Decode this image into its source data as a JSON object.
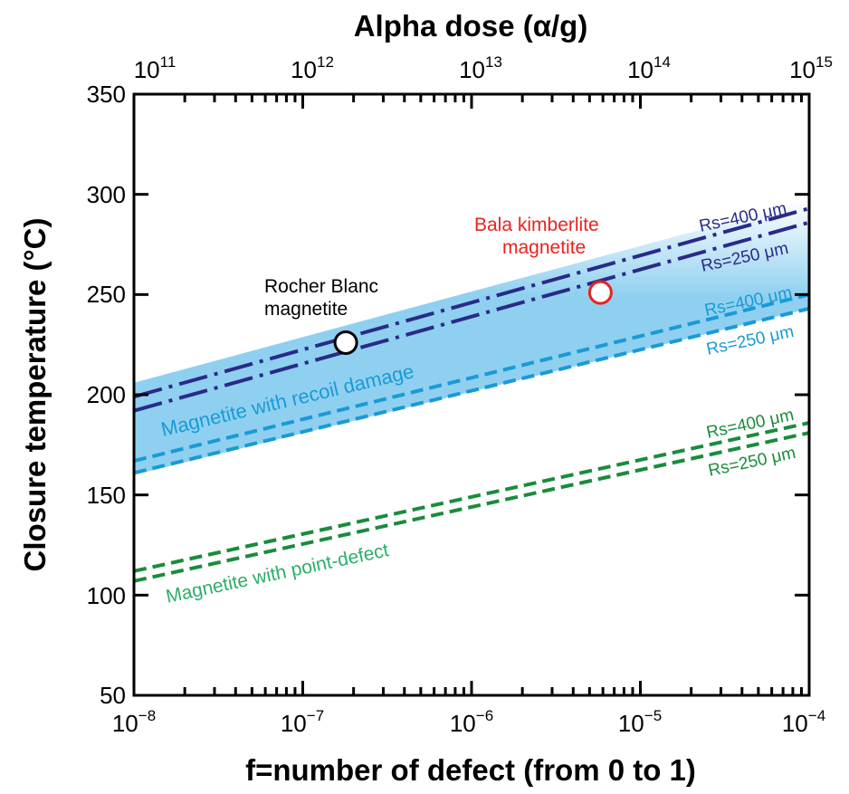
{
  "chart_data": {
    "type": "line",
    "title": "",
    "xlabel": "f=number of defect (from 0 to 1)",
    "ylabel": "Closure temperature (°C)",
    "top_xlabel": "Alpha dose (α/g)",
    "x_scale": "log",
    "xlim": [
      1e-08,
      0.0001
    ],
    "ylim": [
      50,
      350
    ],
    "top_xlim": [
      100000000000.0,
      1000000000000000.0
    ],
    "x_ticks": [
      {
        "base": "10",
        "exp": "−8",
        "value": 1e-08
      },
      {
        "base": "10",
        "exp": "−7",
        "value": 1e-07
      },
      {
        "base": "10",
        "exp": "−6",
        "value": 1e-06
      },
      {
        "base": "10",
        "exp": "−5",
        "value": 1e-05
      },
      {
        "base": "10",
        "exp": "−4",
        "value": 0.0001
      }
    ],
    "top_x_ticks": [
      {
        "base": "10",
        "exp": "11",
        "value": 1e-08
      },
      {
        "base": "10",
        "exp": "12",
        "value": 1e-07
      },
      {
        "base": "10",
        "exp": "13",
        "value": 1e-06
      },
      {
        "base": "10",
        "exp": "14",
        "value": 1e-05
      },
      {
        "base": "10",
        "exp": "15",
        "value": 0.0001
      }
    ],
    "y_ticks": [
      "50",
      "100",
      "150",
      "200",
      "250",
      "300",
      "350"
    ],
    "band": {
      "label": "Magnetite with recoil damage",
      "color": "#8fd0f0",
      "x": [
        1e-08,
        0.0001
      ],
      "upper": [
        206,
        297
      ],
      "lower": [
        160,
        243
      ]
    },
    "series": [
      {
        "name": "Rs=400 μm",
        "group": "recoil-alpha",
        "color": "#2a2a88",
        "dash": "dashdot",
        "x": [
          1e-08,
          0.0001
        ],
        "y": [
          199,
          293
        ]
      },
      {
        "name": "Rs=250 μm",
        "group": "recoil-alpha",
        "color": "#2a2a88",
        "dash": "dashdot",
        "x": [
          1e-08,
          0.0001
        ],
        "y": [
          192,
          286
        ]
      },
      {
        "name": "Rs=400 μm",
        "group": "recoil",
        "color": "#1a9ad6",
        "dash": "dash",
        "x": [
          1e-08,
          0.0001
        ],
        "y": [
          167,
          250
        ]
      },
      {
        "name": "Rs=250 μm",
        "group": "recoil",
        "color": "#1a9ad6",
        "dash": "dash",
        "x": [
          1e-08,
          0.0001
        ],
        "y": [
          161,
          243
        ]
      },
      {
        "name": "Rs=400 μm",
        "group": "point-defect",
        "color": "#1a8c3c",
        "dash": "dash",
        "x": [
          1e-08,
          0.0001
        ],
        "y": [
          112,
          186
        ]
      },
      {
        "name": "Rs=250 μm",
        "group": "point-defect",
        "color": "#1a8c3c",
        "dash": "dash",
        "x": [
          1e-08,
          0.0001
        ],
        "y": [
          107,
          181
        ]
      }
    ],
    "points": [
      {
        "name": "Rocher Blanc magnetite",
        "label_lines": [
          "Rocher Blanc",
          "magnetite"
        ],
        "x": 1.8e-07,
        "y": 226,
        "edge_color": "#000000",
        "label_color": "#000000"
      },
      {
        "name": "Bala kimberlite magnetite",
        "label_lines": [
          "Bala kimberlite",
          "magnetite"
        ],
        "x": 5.8e-06,
        "y": 251,
        "edge_color": "#e8231e",
        "label_color": "#e8231e"
      }
    ],
    "annotations": [
      {
        "text": "Magnetite with recoil damage",
        "color": "#1a9ad6"
      },
      {
        "text": "Magnetite with point-defect",
        "color": "#2cae6a"
      }
    ],
    "grid": false,
    "legend": "none"
  }
}
